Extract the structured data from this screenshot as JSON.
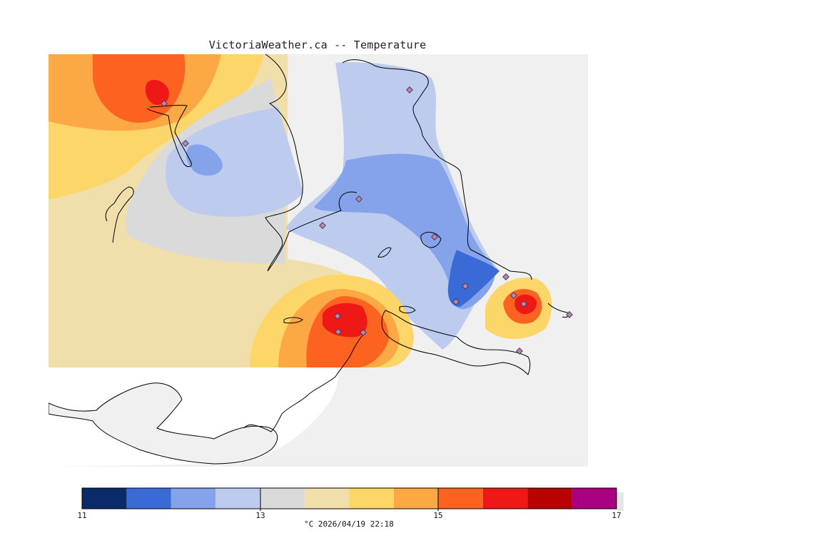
{
  "title": "VictoriaWeather.ca -- Temperature",
  "legend": {
    "ticks": [
      "11",
      "13",
      "15",
      "17"
    ],
    "unit_caption": "°C  2026/04/19 22:18",
    "bins": [
      {
        "from": 11.0,
        "to": 11.5,
        "color": "#0a2a6a"
      },
      {
        "from": 11.5,
        "to": 12.0,
        "color": "#3a6ad6"
      },
      {
        "from": 12.0,
        "to": 12.5,
        "color": "#84a3ea"
      },
      {
        "from": 12.5,
        "to": 13.0,
        "color": "#bccbee"
      },
      {
        "from": 13.0,
        "to": 13.5,
        "color": "#dadada"
      },
      {
        "from": 13.5,
        "to": 14.0,
        "color": "#f1dfab"
      },
      {
        "from": 14.0,
        "to": 14.5,
        "color": "#fdd66a"
      },
      {
        "from": 14.5,
        "to": 15.0,
        "color": "#fca844"
      },
      {
        "from": 15.0,
        "to": 15.5,
        "color": "#fc6320"
      },
      {
        "from": 15.5,
        "to": 16.0,
        "color": "#ee1816"
      },
      {
        "from": 16.0,
        "to": 16.5,
        "color": "#b80200"
      },
      {
        "from": 16.5,
        "to": 17.0,
        "color": "#a80080"
      }
    ]
  },
  "colors": {
    "land_outside_grid": "#f0f0f0",
    "water": "#ffffff",
    "coastline": "#000000",
    "station_marker": "#c080c0"
  }
}
